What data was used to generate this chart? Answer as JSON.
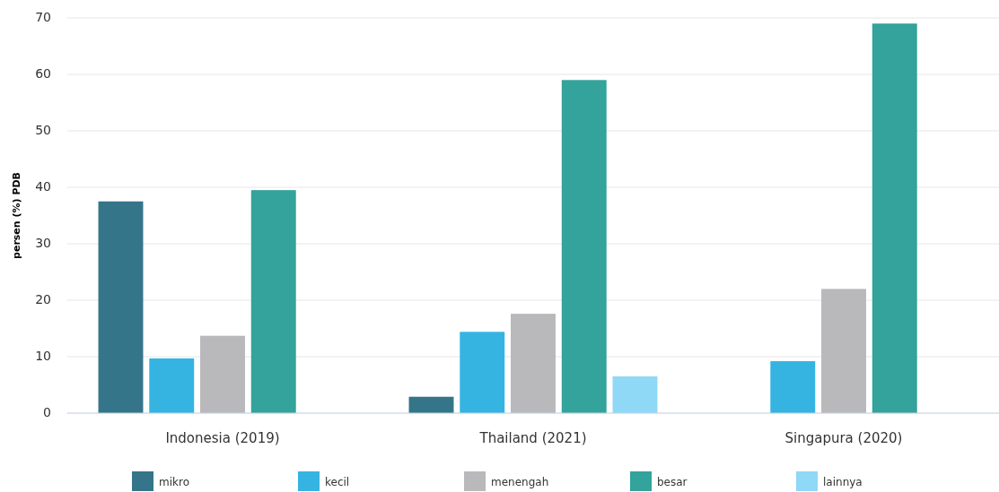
{
  "chart_data": {
    "type": "bar",
    "ylabel": "persen (%) PDB",
    "categories": [
      "Indonesia (2019)",
      "Thailand (2021)",
      "Singapura (2020)"
    ],
    "series": [
      {
        "name": "mikro",
        "color": "#357589",
        "values": [
          37.5,
          2.9,
          null
        ]
      },
      {
        "name": "kecil",
        "color": "#35b4e2",
        "values": [
          9.7,
          14.4,
          9.2
        ]
      },
      {
        "name": "menengah",
        "color": "#b9b9bb",
        "values": [
          13.7,
          17.6,
          22
        ]
      },
      {
        "name": "besar",
        "color": "#33a39b",
        "values": [
          39.5,
          59,
          69
        ]
      },
      {
        "name": "lainnya",
        "color": "#8fd8f6",
        "values": [
          null,
          6.5,
          null
        ]
      }
    ],
    "ylim": [
      0,
      70
    ],
    "yticks": [
      0,
      10,
      20,
      30,
      40,
      50,
      60,
      70
    ],
    "grid": "y",
    "legend": "bottom"
  }
}
